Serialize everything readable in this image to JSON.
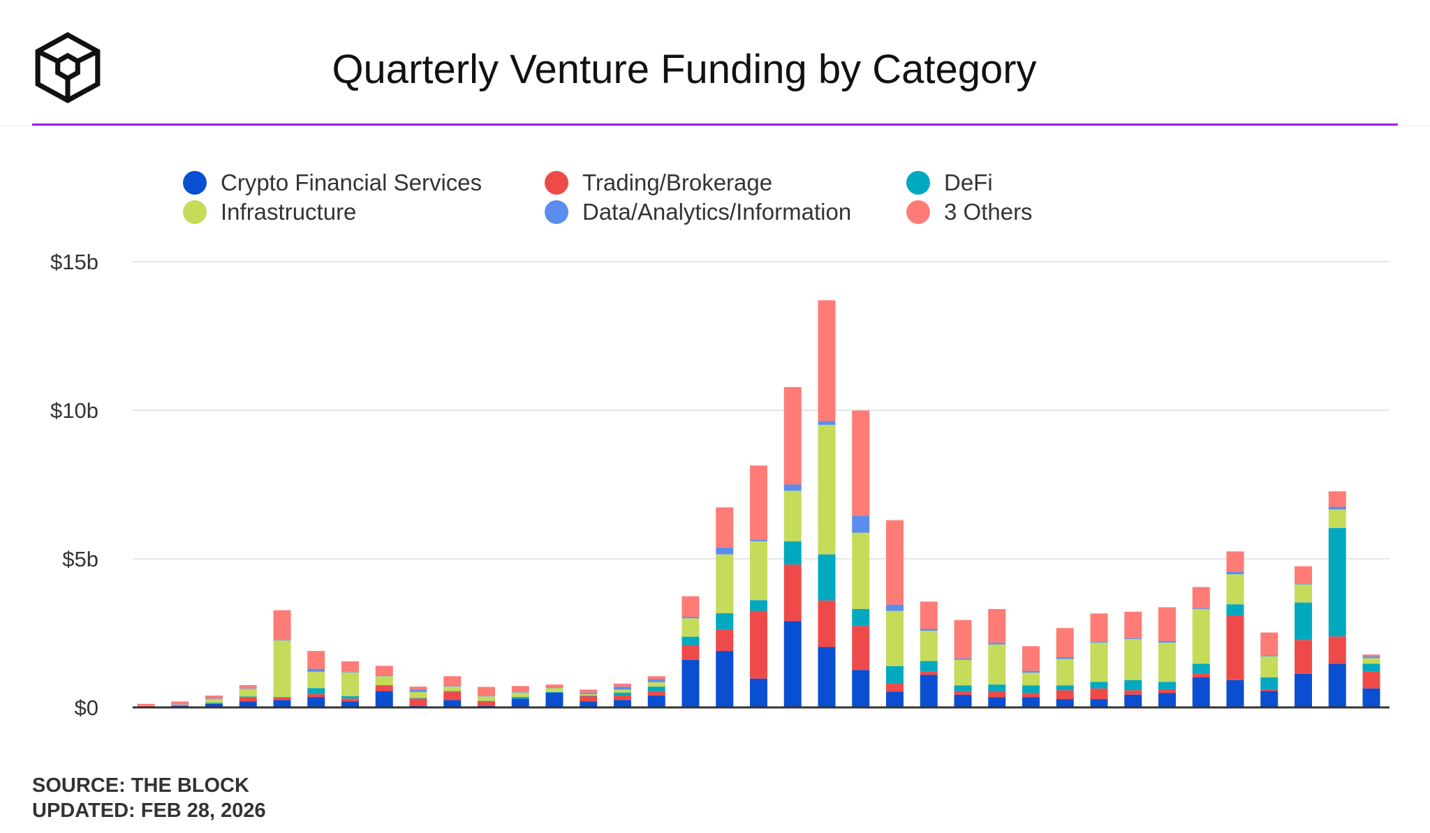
{
  "header": {
    "title": "Quarterly Venture Funding by Category",
    "logo_icon": "the-block-cube-logo"
  },
  "footer": {
    "source": "SOURCE: THE BLOCK",
    "updated": "UPDATED: FEB 28, 2026"
  },
  "colors": {
    "accent_rule": "#9b1fe8"
  },
  "chart_data": {
    "type": "bar",
    "stacked": true,
    "title": "Quarterly Venture Funding by Category",
    "xlabel": "",
    "ylabel": "",
    "ylim": [
      0,
      15
    ],
    "y_unit": "$b",
    "yticks": [
      {
        "value": 0,
        "label": "$0"
      },
      {
        "value": 5,
        "label": "$5b"
      },
      {
        "value": 10,
        "label": "$10b"
      },
      {
        "value": 15,
        "label": "$15b"
      }
    ],
    "grid": true,
    "legend_position": "top",
    "series": [
      {
        "name": "Crypto Financial Services",
        "color": "#0a4fd1",
        "values": [
          0.02,
          0.05,
          0.12,
          0.2,
          0.25,
          0.35,
          0.2,
          0.55,
          0.05,
          0.25,
          0.05,
          0.3,
          0.5,
          0.2,
          0.25,
          0.4,
          1.6,
          1.9,
          0.97,
          2.9,
          2.03,
          1.26,
          0.53,
          1.1,
          0.43,
          0.34,
          0.34,
          0.28,
          0.28,
          0.43,
          0.49,
          1.01,
          0.92,
          0.55,
          1.13,
          1.47,
          0.64
        ]
      },
      {
        "name": "Trading/Brokerage",
        "color": "#ef4a4a",
        "values": [
          0.03,
          0.02,
          0.02,
          0.15,
          0.08,
          0.1,
          0.1,
          0.2,
          0.25,
          0.28,
          0.15,
          0,
          0,
          0.18,
          0.15,
          0.15,
          0.5,
          0.71,
          2.28,
          1.91,
          1.57,
          1.48,
          0.29,
          0.1,
          0.12,
          0.21,
          0.15,
          0.3,
          0.36,
          0.15,
          0.12,
          0.12,
          2.18,
          0.06,
          1.14,
          0.92,
          0.56
        ]
      },
      {
        "name": "DeFi",
        "color": "#00a9c0",
        "values": [
          0,
          0,
          0.02,
          0.02,
          0.02,
          0.2,
          0.08,
          0,
          0.02,
          0.02,
          0.02,
          0.05,
          0.02,
          0.02,
          0.1,
          0.15,
          0.28,
          0.56,
          0.36,
          0.78,
          1.55,
          0.57,
          0.57,
          0.36,
          0.19,
          0.22,
          0.25,
          0.16,
          0.22,
          0.34,
          0.25,
          0.34,
          0.37,
          0.4,
          1.26,
          3.65,
          0.27
        ]
      },
      {
        "name": "Infrastructure",
        "color": "#c5db5a",
        "values": [
          0.01,
          0.01,
          0.12,
          0.25,
          1.9,
          0.55,
          0.8,
          0.3,
          0.2,
          0.15,
          0.15,
          0.15,
          0.13,
          0.05,
          0.1,
          0.15,
          0.62,
          1.98,
          1.98,
          1.7,
          4.36,
          2.57,
          1.86,
          1.02,
          0.86,
          1.35,
          0.43,
          0.89,
          1.32,
          1.38,
          1.32,
          1.84,
          1.01,
          0.71,
          0.61,
          0.62,
          0.19
        ]
      },
      {
        "name": "Data/Analytics/Information",
        "color": "#5b8dee",
        "values": [
          0,
          0.02,
          0.02,
          0.02,
          0.02,
          0.1,
          0.02,
          0.02,
          0.08,
          0.02,
          0.02,
          0.02,
          0.02,
          0.05,
          0.1,
          0.1,
          0.05,
          0.23,
          0.06,
          0.21,
          0.13,
          0.57,
          0.21,
          0.06,
          0.05,
          0.06,
          0.06,
          0.06,
          0.03,
          0.03,
          0.06,
          0.03,
          0.09,
          0.03,
          0.03,
          0.09,
          0.06
        ]
      },
      {
        "name": "3 Others",
        "color": "#ff7b76",
        "values": [
          0.06,
          0.1,
          0.1,
          0.11,
          1.0,
          0.6,
          0.35,
          0.33,
          0.1,
          0.33,
          0.3,
          0.2,
          0.1,
          0.1,
          0.1,
          0.1,
          0.69,
          1.35,
          2.49,
          3.28,
          4.06,
          3.54,
          2.84,
          0.92,
          1.29,
          1.13,
          0.83,
          0.98,
          0.95,
          0.89,
          1.13,
          0.71,
          0.68,
          0.77,
          0.58,
          0.52,
          0.06
        ]
      }
    ]
  }
}
